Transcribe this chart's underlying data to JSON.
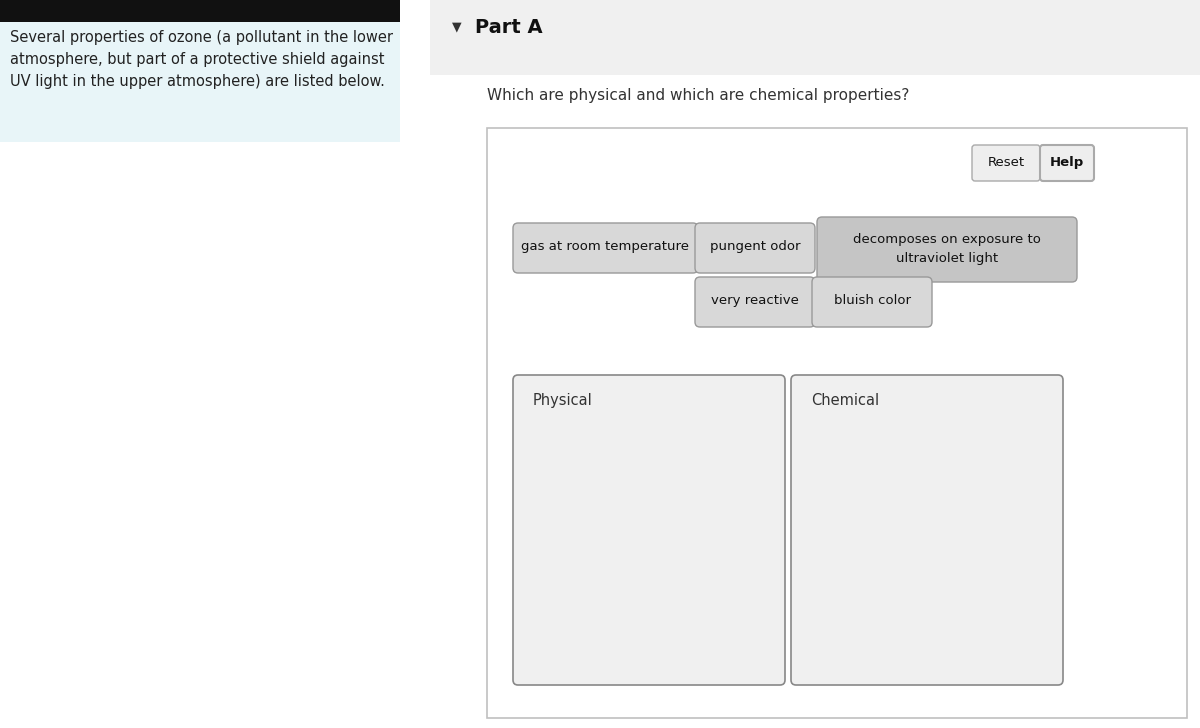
{
  "bg_color": "#ffffff",
  "left_panel_bg": "#e8f5f8",
  "left_panel_text": "Several properties of ozone (a pollutant in the lower\natmosphere, but part of a protective shield against\nUV light in the upper atmosphere) are listed below.",
  "top_bar_color": "#111111",
  "right_panel_bg": "#f7f7f7",
  "part_a_title": "Part A",
  "question_text": "Which are physical and which are chemical properties?",
  "reset_label": "Reset",
  "help_label": "Help",
  "inner_box_bg": "#ffffff",
  "drag_bg_light": "#d8d8d8",
  "drag_bg_dark": "#c5c5c5",
  "drag_edge": "#999999",
  "drop_bg": "#f0f0f0",
  "drop_edge": "#888888"
}
